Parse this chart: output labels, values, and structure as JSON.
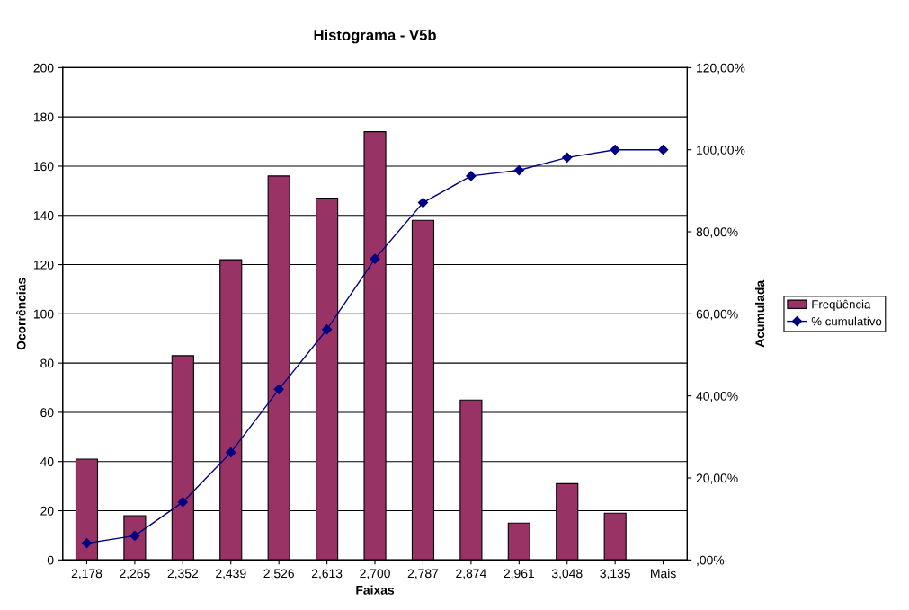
{
  "chart_data": {
    "type": "bar",
    "title": "Histograma - V5b",
    "xlabel": "Faixas",
    "ylabel": "Ocorrências",
    "y2label": "Acumulada",
    "categories": [
      "2,178",
      "2,265",
      "2,352",
      "2,439",
      "2,526",
      "2,613",
      "2,700",
      "2,787",
      "2,874",
      "2,961",
      "3,048",
      "3,135",
      "Mais"
    ],
    "series": [
      {
        "name": "Freqüência",
        "color": "#993366",
        "values": [
          41,
          18,
          83,
          122,
          156,
          147,
          174,
          138,
          65,
          15,
          31,
          19,
          null
        ]
      },
      {
        "name": "% cumulativo",
        "type": "line",
        "axis": "y2",
        "color": "#000080",
        "marker": "diamond",
        "values": [
          4.1,
          5.9,
          14.1,
          26.2,
          41.6,
          56.2,
          73.4,
          87.1,
          93.6,
          95.0,
          98.1,
          100,
          100
        ]
      }
    ],
    "ylim": [
      0,
      200
    ],
    "yticks": [
      0,
      20,
      40,
      60,
      80,
      100,
      120,
      140,
      160,
      180,
      200
    ],
    "y2lim": [
      0,
      120
    ],
    "y2ticks": [
      {
        "value": 0,
        "label": ",00%"
      },
      {
        "value": 20,
        "label": "20,00%"
      },
      {
        "value": 40,
        "label": "40,00%"
      },
      {
        "value": 60,
        "label": "60,00%"
      },
      {
        "value": 80,
        "label": "80,00%"
      },
      {
        "value": 100,
        "label": "100,00%"
      },
      {
        "value": 120,
        "label": "120,00%"
      }
    ],
    "grid": "y",
    "legend": "right"
  }
}
